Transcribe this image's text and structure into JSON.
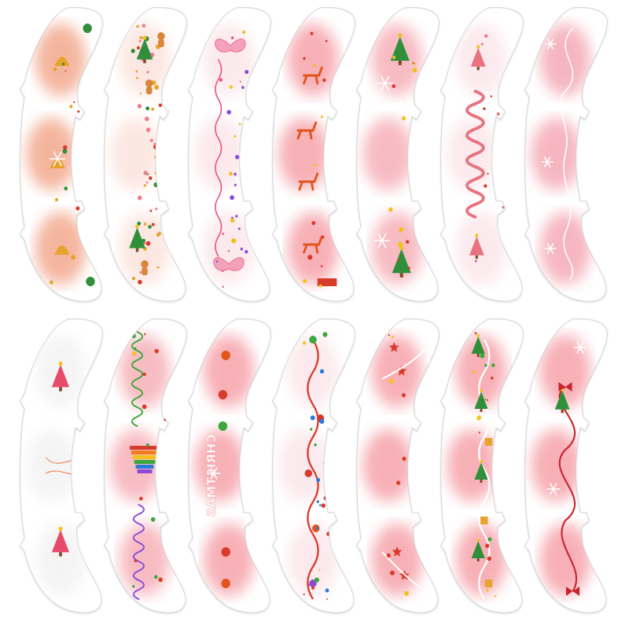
{
  "product": {
    "kind": "christmas-blush-face-stickers",
    "rows": 2,
    "stickers_per_row": 7,
    "top_row": [
      {
        "theme": "bells-holly",
        "glow": "#f3a98e",
        "accent": "#d93b2b"
      },
      {
        "theme": "gingerbread-trees",
        "glow": "#fbe3dc",
        "accent": "#3a9a3a"
      },
      {
        "theme": "pink-butterflies",
        "glow": "#fbe6ea",
        "accent": "#e84a7a"
      },
      {
        "theme": "reindeer",
        "glow": "#f6a3aa",
        "accent": "#e2541c"
      },
      {
        "theme": "xmas-trees-snowflakes",
        "glow": "#f6b0b8",
        "accent": "#2f8f3a"
      },
      {
        "theme": "pink-ribbon-wave",
        "glow": "#fbe6ea",
        "accent": "#e8737f"
      },
      {
        "theme": "pink-swirl",
        "glow": "#f4aab6",
        "accent": "#f07a8e"
      }
    ],
    "bottom_row": [
      {
        "theme": "pink-tree-minimal",
        "glow": "#f3f3f3",
        "accent": "#e84a6a"
      },
      {
        "theme": "rainbow-tree-ribbons",
        "glow": "#f6b0b8",
        "accent": "#8a4ad9"
      },
      {
        "theme": "christmas-lettering",
        "glow": "#f6a3aa",
        "accent": "#d93b2b"
      },
      {
        "theme": "ornament-garland",
        "glow": "#fbe6ea",
        "accent": "#d93b2b"
      },
      {
        "theme": "stars-branches",
        "glow": "#f6a3aa",
        "accent": "#d93b2b"
      },
      {
        "theme": "presents-garland",
        "glow": "#f6a3aa",
        "accent": "#2f8f3a"
      },
      {
        "theme": "red-ribbon-bows",
        "glow": "#f6a3aa",
        "accent": "#c9232e"
      }
    ],
    "reversed_text": {
      "sticker": 10,
      "text": "CHRISTMAS"
    }
  }
}
